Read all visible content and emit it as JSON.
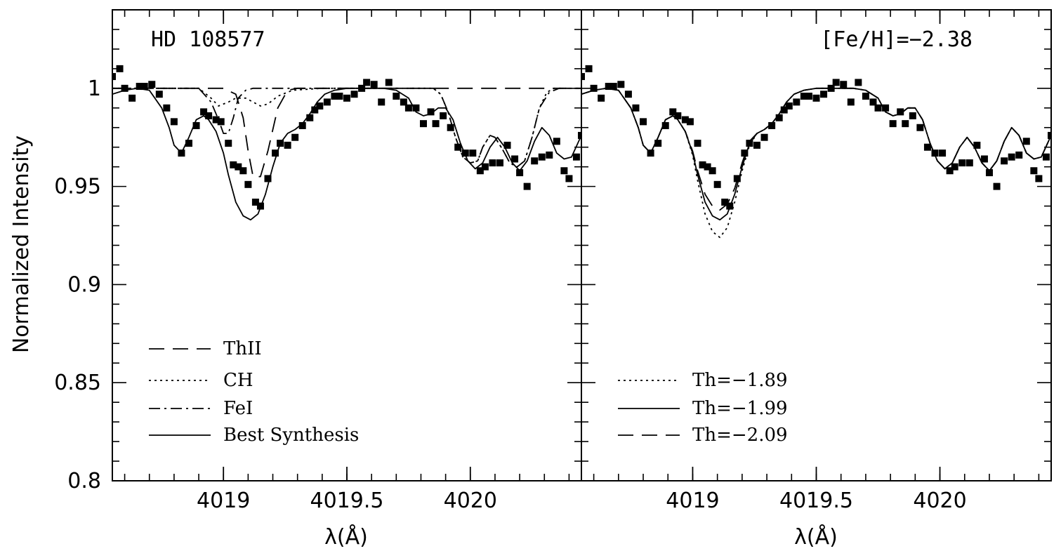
{
  "figure": {
    "ylabel": "Normalized Intensity",
    "xlabel": "λ(Å)"
  },
  "chart_data": [
    {
      "type": "line",
      "panel": "left",
      "annotation": "HD 108577",
      "xlabel": "λ(Å)",
      "ylabel": "Normalized Intensity",
      "xlim": [
        4018.55,
        4020.45
      ],
      "ylim": [
        0.8,
        1.04
      ],
      "xticks": [
        4019,
        4019.5,
        4020
      ],
      "xtick_labels": [
        "4019",
        "4019.5",
        "4020"
      ],
      "yticks": [
        0.8,
        0.85,
        0.9,
        0.95,
        1.0
      ],
      "ytick_labels": [
        "0.8",
        "0.85",
        "0.9",
        "0.95",
        "1"
      ],
      "legend_position": "bottom-left",
      "observed": {
        "x": [
          4018.55,
          4018.58,
          4018.6,
          4018.63,
          4018.66,
          4018.68,
          4018.71,
          4018.74,
          4018.77,
          4018.8,
          4018.83,
          4018.86,
          4018.89,
          4018.92,
          4018.94,
          4018.97,
          4018.99,
          4019.02,
          4019.04,
          4019.06,
          4019.08,
          4019.1,
          4019.13,
          4019.15,
          4019.18,
          4019.21,
          4019.23,
          4019.26,
          4019.29,
          4019.32,
          4019.35,
          4019.37,
          4019.39,
          4019.42,
          4019.45,
          4019.47,
          4019.5,
          4019.53,
          4019.56,
          4019.58,
          4019.61,
          4019.64,
          4019.67,
          4019.7,
          4019.73,
          4019.75,
          4019.78,
          4019.81,
          4019.84,
          4019.86,
          4019.89,
          4019.92,
          4019.95,
          4019.98,
          4020.01,
          4020.04,
          4020.06,
          4020.09,
          4020.12,
          4020.15,
          4020.18,
          4020.2,
          4020.23,
          4020.26,
          4020.29,
          4020.32,
          4020.35,
          4020.38,
          4020.4,
          4020.43,
          4020.45
        ],
        "y": [
          1.006,
          1.01,
          1.0,
          0.995,
          1.001,
          1.001,
          1.002,
          0.997,
          0.99,
          0.983,
          0.967,
          0.972,
          0.981,
          0.988,
          0.986,
          0.984,
          0.983,
          0.972,
          0.961,
          0.96,
          0.958,
          0.951,
          0.942,
          0.94,
          0.954,
          0.967,
          0.972,
          0.971,
          0.975,
          0.981,
          0.985,
          0.989,
          0.991,
          0.993,
          0.996,
          0.996,
          0.995,
          0.997,
          1.0,
          1.003,
          1.002,
          0.993,
          1.003,
          0.996,
          0.993,
          0.99,
          0.99,
          0.982,
          0.988,
          0.982,
          0.986,
          0.98,
          0.97,
          0.967,
          0.967,
          0.958,
          0.96,
          0.962,
          0.962,
          0.971,
          0.964,
          0.957,
          0.95,
          0.963,
          0.965,
          0.966,
          0.973,
          0.958,
          0.954,
          0.965,
          0.976
        ]
      },
      "series": [
        {
          "name": "ThII",
          "style": "long-dash",
          "x": [
            4018.55,
            4019.0,
            4019.05,
            4019.08,
            4019.1,
            4019.12,
            4019.15,
            4019.18,
            4019.22,
            4019.26,
            4019.3,
            4020.45
          ],
          "y": [
            1.0,
            1.0,
            0.997,
            0.985,
            0.968,
            0.955,
            0.955,
            0.968,
            0.99,
            0.999,
            1.0,
            1.0
          ]
        },
        {
          "name": "CH",
          "style": "dotted",
          "x": [
            4018.55,
            4018.9,
            4018.95,
            4018.98,
            4019.02,
            4019.05,
            4019.09,
            4019.12,
            4019.15,
            4019.18,
            4019.22,
            4019.28,
            4019.4,
            4019.85,
            4019.88,
            4019.91,
            4019.94,
            4019.97,
            4020.0,
            4020.03,
            4020.05,
            4020.08,
            4020.1,
            4020.13,
            4020.16,
            4020.19,
            4020.22,
            4020.25,
            4020.28,
            4020.31,
            4020.34,
            4020.4,
            4020.45
          ],
          "y": [
            1.0,
            1.0,
            0.995,
            0.991,
            0.993,
            0.995,
            0.995,
            0.993,
            0.991,
            0.992,
            0.996,
            0.999,
            1.0,
            1.0,
            0.997,
            0.988,
            0.975,
            0.965,
            0.962,
            0.963,
            0.97,
            0.976,
            0.975,
            0.969,
            0.962,
            0.96,
            0.963,
            0.975,
            0.99,
            0.998,
            1.0,
            1.0,
            1.0
          ]
        },
        {
          "name": "FeI",
          "style": "dash-dot",
          "x": [
            4018.55,
            4018.9,
            4018.95,
            4018.98,
            4019.0,
            4019.02,
            4019.04,
            4019.06,
            4019.09,
            4019.12,
            4019.2,
            4019.3,
            4019.85,
            4019.88,
            4019.91,
            4019.94,
            4019.97,
            4020.0,
            4020.03,
            4020.05,
            4020.08,
            4020.1,
            4020.13,
            4020.16,
            4020.19,
            4020.22,
            4020.25,
            4020.28,
            4020.32,
            4020.36,
            4020.4,
            4020.45
          ],
          "y": [
            1.0,
            1.0,
            0.993,
            0.984,
            0.977,
            0.977,
            0.985,
            0.995,
            0.999,
            1.0,
            1.0,
            1.0,
            1.0,
            0.997,
            0.988,
            0.975,
            0.965,
            0.962,
            0.963,
            0.97,
            0.976,
            0.975,
            0.969,
            0.962,
            0.96,
            0.963,
            0.975,
            0.99,
            0.998,
            1.0,
            1.0,
            1.0
          ]
        },
        {
          "name": "Best Synthesis",
          "style": "solid",
          "x": [
            4018.55,
            4018.6,
            4018.65,
            4018.7,
            4018.75,
            4018.78,
            4018.8,
            4018.83,
            4018.86,
            4018.89,
            4018.92,
            4018.94,
            4018.97,
            4019.0,
            4019.02,
            4019.05,
            4019.08,
            4019.11,
            4019.14,
            4019.17,
            4019.2,
            4019.23,
            4019.26,
            4019.29,
            4019.32,
            4019.35,
            4019.38,
            4019.41,
            4019.45,
            4019.5,
            4019.55,
            4019.6,
            4019.65,
            4019.7,
            4019.75,
            4019.78,
            4019.81,
            4019.84,
            4019.87,
            4019.9,
            4019.93,
            4019.96,
            4019.99,
            4020.02,
            4020.05,
            4020.08,
            4020.11,
            4020.14,
            4020.17,
            4020.2,
            4020.23,
            4020.26,
            4020.29,
            4020.32,
            4020.35,
            4020.38,
            4020.41,
            4020.45
          ],
          "y": [
            0.997,
            0.999,
            1.0,
            0.999,
            0.99,
            0.98,
            0.971,
            0.967,
            0.975,
            0.984,
            0.986,
            0.984,
            0.978,
            0.967,
            0.956,
            0.942,
            0.935,
            0.933,
            0.936,
            0.946,
            0.96,
            0.972,
            0.977,
            0.979,
            0.982,
            0.987,
            0.993,
            0.997,
            0.999,
            1.0,
            1.0,
            1.0,
            1.0,
            0.999,
            0.995,
            0.988,
            0.986,
            0.987,
            0.99,
            0.99,
            0.984,
            0.972,
            0.963,
            0.959,
            0.962,
            0.97,
            0.975,
            0.97,
            0.962,
            0.958,
            0.963,
            0.973,
            0.98,
            0.976,
            0.967,
            0.964,
            0.965,
            0.976
          ]
        }
      ]
    },
    {
      "type": "line",
      "panel": "right",
      "annotation": "[Fe/H]=−2.38",
      "xlabel": "λ(Å)",
      "ylabel": "",
      "xlim": [
        4018.55,
        4020.45
      ],
      "ylim": [
        0.8,
        1.04
      ],
      "xticks": [
        4019,
        4019.5,
        4020
      ],
      "xtick_labels": [
        "4019",
        "4019.5",
        "4020"
      ],
      "legend_position": "bottom-left",
      "observed": {
        "x": [
          4018.55,
          4018.58,
          4018.6,
          4018.63,
          4018.66,
          4018.68,
          4018.71,
          4018.74,
          4018.77,
          4018.8,
          4018.83,
          4018.86,
          4018.89,
          4018.92,
          4018.94,
          4018.97,
          4018.99,
          4019.02,
          4019.04,
          4019.06,
          4019.08,
          4019.1,
          4019.13,
          4019.15,
          4019.18,
          4019.21,
          4019.23,
          4019.26,
          4019.29,
          4019.32,
          4019.35,
          4019.37,
          4019.39,
          4019.42,
          4019.45,
          4019.47,
          4019.5,
          4019.53,
          4019.56,
          4019.58,
          4019.61,
          4019.64,
          4019.67,
          4019.7,
          4019.73,
          4019.75,
          4019.78,
          4019.81,
          4019.84,
          4019.86,
          4019.89,
          4019.92,
          4019.95,
          4019.98,
          4020.01,
          4020.04,
          4020.06,
          4020.09,
          4020.12,
          4020.15,
          4020.18,
          4020.2,
          4020.23,
          4020.26,
          4020.29,
          4020.32,
          4020.35,
          4020.38,
          4020.4,
          4020.43,
          4020.45
        ],
        "y": [
          1.006,
          1.01,
          1.0,
          0.995,
          1.001,
          1.001,
          1.002,
          0.997,
          0.99,
          0.983,
          0.967,
          0.972,
          0.981,
          0.988,
          0.986,
          0.984,
          0.983,
          0.972,
          0.961,
          0.96,
          0.958,
          0.951,
          0.942,
          0.94,
          0.954,
          0.967,
          0.972,
          0.971,
          0.975,
          0.981,
          0.985,
          0.989,
          0.991,
          0.993,
          0.996,
          0.996,
          0.995,
          0.997,
          1.0,
          1.003,
          1.002,
          0.993,
          1.003,
          0.996,
          0.993,
          0.99,
          0.99,
          0.982,
          0.988,
          0.982,
          0.986,
          0.98,
          0.97,
          0.967,
          0.967,
          0.958,
          0.96,
          0.962,
          0.962,
          0.971,
          0.964,
          0.957,
          0.95,
          0.963,
          0.965,
          0.966,
          0.973,
          0.958,
          0.954,
          0.965,
          0.976
        ]
      },
      "series": [
        {
          "name": "Th=−1.89",
          "style": "dotted",
          "x": [
            4018.55,
            4018.6,
            4018.65,
            4018.7,
            4018.75,
            4018.78,
            4018.8,
            4018.83,
            4018.86,
            4018.89,
            4018.92,
            4018.94,
            4018.97,
            4019.0,
            4019.02,
            4019.05,
            4019.08,
            4019.11,
            4019.14,
            4019.17,
            4019.2,
            4019.23,
            4019.26,
            4019.29,
            4019.32,
            4019.35,
            4019.38,
            4019.41,
            4019.45,
            4019.5,
            4019.55,
            4019.6,
            4019.65,
            4019.7,
            4019.75,
            4019.78,
            4019.81,
            4019.84,
            4019.87,
            4019.9,
            4019.93,
            4019.96,
            4019.99,
            4020.02,
            4020.05,
            4020.08,
            4020.11,
            4020.14,
            4020.17,
            4020.2,
            4020.23,
            4020.26,
            4020.29,
            4020.32,
            4020.35,
            4020.38,
            4020.41,
            4020.45
          ],
          "y": [
            0.997,
            0.999,
            1.0,
            0.999,
            0.99,
            0.98,
            0.971,
            0.967,
            0.975,
            0.984,
            0.986,
            0.984,
            0.978,
            0.966,
            0.953,
            0.936,
            0.927,
            0.924,
            0.929,
            0.942,
            0.958,
            0.971,
            0.977,
            0.979,
            0.982,
            0.987,
            0.993,
            0.997,
            0.999,
            1.0,
            1.0,
            1.0,
            1.0,
            0.999,
            0.995,
            0.988,
            0.986,
            0.987,
            0.99,
            0.99,
            0.984,
            0.972,
            0.963,
            0.959,
            0.962,
            0.97,
            0.975,
            0.97,
            0.962,
            0.958,
            0.963,
            0.973,
            0.98,
            0.976,
            0.967,
            0.964,
            0.965,
            0.976
          ]
        },
        {
          "name": "Th=−1.99",
          "style": "solid",
          "x": [
            4018.55,
            4018.6,
            4018.65,
            4018.7,
            4018.75,
            4018.78,
            4018.8,
            4018.83,
            4018.86,
            4018.89,
            4018.92,
            4018.94,
            4018.97,
            4019.0,
            4019.02,
            4019.05,
            4019.08,
            4019.11,
            4019.14,
            4019.17,
            4019.2,
            4019.23,
            4019.26,
            4019.29,
            4019.32,
            4019.35,
            4019.38,
            4019.41,
            4019.45,
            4019.5,
            4019.55,
            4019.6,
            4019.65,
            4019.7,
            4019.75,
            4019.78,
            4019.81,
            4019.84,
            4019.87,
            4019.9,
            4019.93,
            4019.96,
            4019.99,
            4020.02,
            4020.05,
            4020.08,
            4020.11,
            4020.14,
            4020.17,
            4020.2,
            4020.23,
            4020.26,
            4020.29,
            4020.32,
            4020.35,
            4020.38,
            4020.41,
            4020.45
          ],
          "y": [
            0.997,
            0.999,
            1.0,
            0.999,
            0.99,
            0.98,
            0.971,
            0.967,
            0.975,
            0.984,
            0.986,
            0.984,
            0.978,
            0.967,
            0.956,
            0.942,
            0.935,
            0.933,
            0.936,
            0.946,
            0.96,
            0.972,
            0.977,
            0.979,
            0.982,
            0.987,
            0.993,
            0.997,
            0.999,
            1.0,
            1.0,
            1.0,
            1.0,
            0.999,
            0.995,
            0.988,
            0.986,
            0.987,
            0.99,
            0.99,
            0.984,
            0.972,
            0.963,
            0.959,
            0.962,
            0.97,
            0.975,
            0.97,
            0.962,
            0.958,
            0.963,
            0.973,
            0.98,
            0.976,
            0.967,
            0.964,
            0.965,
            0.976
          ]
        },
        {
          "name": "Th=−2.09",
          "style": "long-dash",
          "x": [
            4018.55,
            4018.6,
            4018.65,
            4018.7,
            4018.75,
            4018.78,
            4018.8,
            4018.83,
            4018.86,
            4018.89,
            4018.92,
            4018.94,
            4018.97,
            4019.0,
            4019.02,
            4019.05,
            4019.08,
            4019.11,
            4019.14,
            4019.17,
            4019.2,
            4019.23,
            4019.26,
            4019.29,
            4019.32,
            4019.35,
            4019.38,
            4019.41,
            4019.45,
            4019.5,
            4019.55,
            4019.6,
            4019.65,
            4019.7,
            4019.75,
            4019.78,
            4019.81,
            4019.84,
            4019.87,
            4019.9,
            4019.93,
            4019.96,
            4019.99,
            4020.02,
            4020.05,
            4020.08,
            4020.11,
            4020.14,
            4020.17,
            4020.2,
            4020.23,
            4020.26,
            4020.29,
            4020.32,
            4020.35,
            4020.38,
            4020.41,
            4020.45
          ],
          "y": [
            0.997,
            0.999,
            1.0,
            0.999,
            0.99,
            0.98,
            0.971,
            0.967,
            0.975,
            0.984,
            0.986,
            0.984,
            0.978,
            0.968,
            0.958,
            0.946,
            0.94,
            0.938,
            0.941,
            0.949,
            0.962,
            0.973,
            0.977,
            0.979,
            0.982,
            0.987,
            0.993,
            0.997,
            0.999,
            1.0,
            1.0,
            1.0,
            1.0,
            0.999,
            0.995,
            0.988,
            0.986,
            0.987,
            0.99,
            0.99,
            0.984,
            0.972,
            0.963,
            0.959,
            0.962,
            0.97,
            0.975,
            0.97,
            0.962,
            0.958,
            0.963,
            0.973,
            0.98,
            0.976,
            0.967,
            0.964,
            0.965,
            0.976
          ]
        }
      ]
    }
  ]
}
